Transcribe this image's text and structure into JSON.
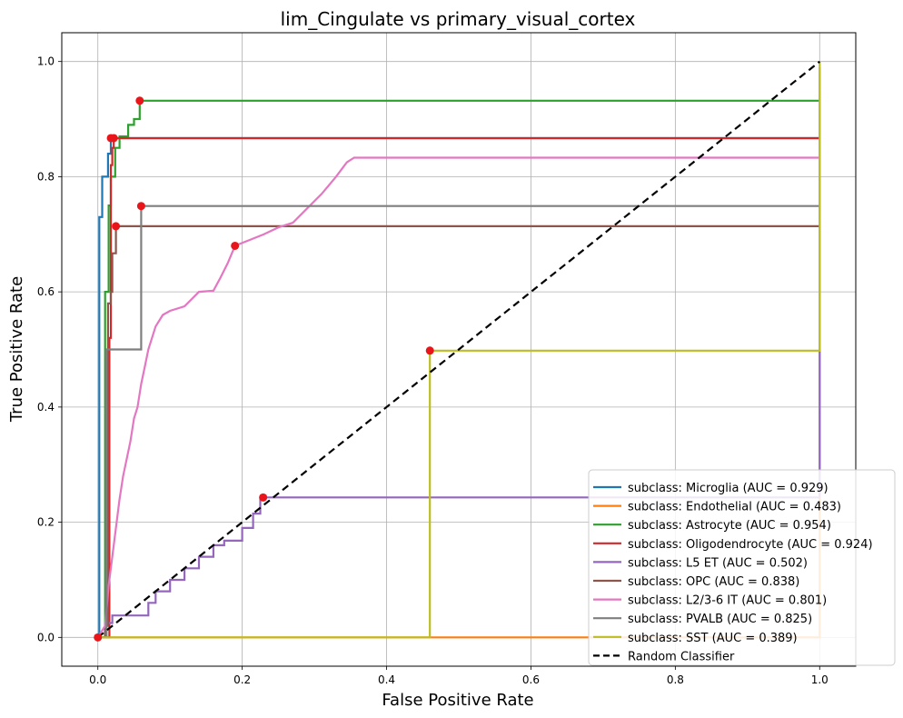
{
  "chart_data": {
    "type": "line",
    "title": "lim_Cingulate vs primary_visual_cortex",
    "xlabel": "False Positive Rate",
    "ylabel": "True Positive Rate",
    "xlim": [
      -0.05,
      1.05
    ],
    "ylim": [
      -0.05,
      1.05
    ],
    "grid": true,
    "legend_position": "lower-right",
    "xticks": [
      "0.0",
      "0.2",
      "0.4",
      "0.6",
      "0.8",
      "1.0"
    ],
    "yticks": [
      "0.0",
      "0.2",
      "0.4",
      "0.6",
      "0.8",
      "1.0"
    ],
    "series": [
      {
        "name": "subclass: Microglia (AUC = 0.929)",
        "color": "#1f77b4",
        "points": [
          [
            0,
            0
          ],
          [
            0.002,
            0
          ],
          [
            0.002,
            0.73
          ],
          [
            0.006,
            0.73
          ],
          [
            0.006,
            0.8
          ],
          [
            0.014,
            0.8
          ],
          [
            0.014,
            0.84
          ],
          [
            0.018,
            0.84
          ],
          [
            0.018,
            0.867
          ],
          [
            1,
            0.867
          ]
        ],
        "marker": [
          0.018,
          0.867
        ]
      },
      {
        "name": "subclass: Endothelial (AUC = 0.483)",
        "color": "#ff7f0e",
        "points": [
          [
            0,
            0
          ],
          [
            1,
            0
          ],
          [
            1,
            0.99
          ]
        ],
        "marker": null
      },
      {
        "name": "subclass: Astrocyte (AUC = 0.954)",
        "color": "#2ca02c",
        "points": [
          [
            0,
            0
          ],
          [
            0.01,
            0
          ],
          [
            0.01,
            0.6
          ],
          [
            0.015,
            0.6
          ],
          [
            0.015,
            0.75
          ],
          [
            0.018,
            0.75
          ],
          [
            0.018,
            0.8
          ],
          [
            0.024,
            0.8
          ],
          [
            0.024,
            0.85
          ],
          [
            0.03,
            0.85
          ],
          [
            0.03,
            0.87
          ],
          [
            0.042,
            0.87
          ],
          [
            0.042,
            0.89
          ],
          [
            0.05,
            0.89
          ],
          [
            0.05,
            0.9
          ],
          [
            0.058,
            0.9
          ],
          [
            0.058,
            0.932
          ],
          [
            1,
            0.932
          ]
        ],
        "marker": [
          0.058,
          0.932
        ]
      },
      {
        "name": "subclass: Oligodendrocyte (AUC = 0.924)",
        "color": "#d62728",
        "points": [
          [
            0,
            0
          ],
          [
            0.016,
            0
          ],
          [
            0.016,
            0.52
          ],
          [
            0.018,
            0.52
          ],
          [
            0.018,
            0.82
          ],
          [
            0.02,
            0.82
          ],
          [
            0.02,
            0.85
          ],
          [
            0.022,
            0.85
          ],
          [
            0.022,
            0.867
          ],
          [
            1,
            0.867
          ]
        ],
        "marker": [
          0.022,
          0.867
        ]
      },
      {
        "name": "subclass: L5 ET (AUC = 0.502)",
        "color": "#9467bd",
        "points": [
          [
            0,
            0
          ],
          [
            0.01,
            0
          ],
          [
            0.01,
            0.025
          ],
          [
            0.02,
            0.025
          ],
          [
            0.02,
            0.038
          ],
          [
            0.07,
            0.038
          ],
          [
            0.07,
            0.06
          ],
          [
            0.08,
            0.06
          ],
          [
            0.08,
            0.08
          ],
          [
            0.1,
            0.08
          ],
          [
            0.1,
            0.1
          ],
          [
            0.12,
            0.1
          ],
          [
            0.12,
            0.12
          ],
          [
            0.14,
            0.12
          ],
          [
            0.14,
            0.14
          ],
          [
            0.16,
            0.14
          ],
          [
            0.16,
            0.16
          ],
          [
            0.175,
            0.16
          ],
          [
            0.175,
            0.168
          ],
          [
            0.2,
            0.168
          ],
          [
            0.2,
            0.19
          ],
          [
            0.215,
            0.19
          ],
          [
            0.215,
            0.215
          ],
          [
            0.225,
            0.215
          ],
          [
            0.225,
            0.243
          ],
          [
            1,
            0.243
          ],
          [
            1,
            0.5
          ]
        ],
        "marker": [
          0.229,
          0.243
        ]
      },
      {
        "name": "subclass: OPC (AUC = 0.838)",
        "color": "#8c564b",
        "points": [
          [
            0,
            0
          ],
          [
            0.01,
            0
          ],
          [
            0.01,
            0.02
          ],
          [
            0.014,
            0.02
          ],
          [
            0.014,
            0.58
          ],
          [
            0.018,
            0.58
          ],
          [
            0.018,
            0.6
          ],
          [
            0.02,
            0.6
          ],
          [
            0.02,
            0.667
          ],
          [
            0.025,
            0.667
          ],
          [
            0.025,
            0.714
          ],
          [
            1,
            0.714
          ]
        ],
        "marker": [
          0.025,
          0.714
        ]
      },
      {
        "name": "subclass: L2/3-6 IT (AUC = 0.801)",
        "color": "#e377c2",
        "points": [
          [
            0,
            0
          ],
          [
            0.01,
            0.02
          ],
          [
            0.015,
            0.09
          ],
          [
            0.02,
            0.14
          ],
          [
            0.025,
            0.19
          ],
          [
            0.03,
            0.24
          ],
          [
            0.035,
            0.28
          ],
          [
            0.04,
            0.31
          ],
          [
            0.045,
            0.34
          ],
          [
            0.05,
            0.38
          ],
          [
            0.055,
            0.4
          ],
          [
            0.06,
            0.44
          ],
          [
            0.065,
            0.47
          ],
          [
            0.07,
            0.5
          ],
          [
            0.08,
            0.54
          ],
          [
            0.09,
            0.56
          ],
          [
            0.1,
            0.567
          ],
          [
            0.12,
            0.575
          ],
          [
            0.14,
            0.6
          ],
          [
            0.16,
            0.602
          ],
          [
            0.17,
            0.625
          ],
          [
            0.18,
            0.65
          ],
          [
            0.19,
            0.68
          ],
          [
            0.21,
            0.69
          ],
          [
            0.23,
            0.7
          ],
          [
            0.25,
            0.712
          ],
          [
            0.27,
            0.72
          ],
          [
            0.29,
            0.745
          ],
          [
            0.31,
            0.77
          ],
          [
            0.33,
            0.8
          ],
          [
            0.345,
            0.825
          ],
          [
            0.355,
            0.833
          ],
          [
            1,
            0.833
          ]
        ],
        "marker": [
          0.19,
          0.68
        ]
      },
      {
        "name": "subclass: PVALB (AUC = 0.825)",
        "color": "#7f7f7f",
        "points": [
          [
            0,
            0
          ],
          [
            0.012,
            0
          ],
          [
            0.012,
            0.5
          ],
          [
            0.06,
            0.5
          ],
          [
            0.06,
            0.749
          ],
          [
            1,
            0.749
          ]
        ],
        "marker": [
          0.06,
          0.749
        ]
      },
      {
        "name": "subclass: SST (AUC = 0.389)",
        "color": "#bcbd22",
        "points": [
          [
            0,
            0
          ],
          [
            0.46,
            0
          ],
          [
            0.46,
            0.498
          ],
          [
            1,
            0.498
          ],
          [
            1,
            1
          ]
        ],
        "marker": [
          0.46,
          0.498
        ]
      },
      {
        "name": "Random Classifier",
        "color": "#000000",
        "dashed": true,
        "points": [
          [
            0,
            0
          ],
          [
            1,
            1
          ]
        ],
        "marker": null
      }
    ],
    "origin_marker": [
      0,
      0
    ]
  }
}
